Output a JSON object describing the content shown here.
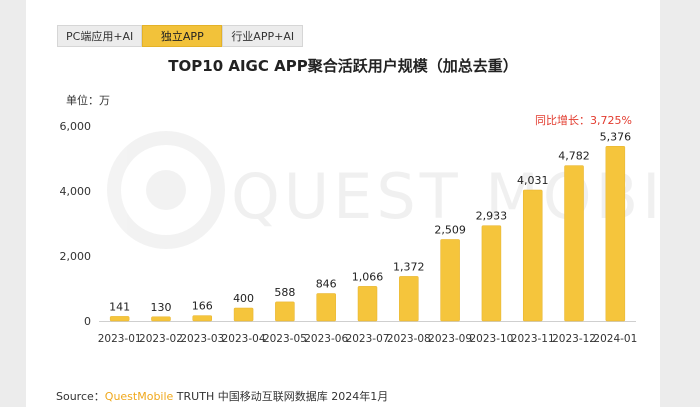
{
  "tabs": [
    {
      "label": "PC端应用+AI",
      "active": false
    },
    {
      "label": "独立APP",
      "active": true
    },
    {
      "label": "行业APP+AI",
      "active": false
    }
  ],
  "unit_label": "单位：万",
  "growth_note": "同比增长：3,725%",
  "watermark": "QUEST MOBILE",
  "source": {
    "prefix": "Source：",
    "brand": "QuestMobile",
    "rest": " TRUTH 中国移动互联网数据库 2024年1月"
  },
  "colors": {
    "bar": "#f5c53c",
    "bar_edge": "#e6b22a",
    "accent": "#e23b2e",
    "tab_active": "#f2c23a"
  },
  "chart_data": {
    "type": "bar",
    "title": "TOP10 AIGC APP聚合活跃用户规模（加总去重）",
    "xlabel": "",
    "ylabel": "单位：万",
    "ylim": [
      0,
      6000
    ],
    "yticks": [
      0,
      2000,
      4000,
      6000
    ],
    "ytick_labels": [
      "0",
      "2,000",
      "4,000",
      "6,000"
    ],
    "categories": [
      "2023-01",
      "2023-02",
      "2023-03",
      "2023-04",
      "2023-05",
      "2023-06",
      "2023-07",
      "2023-08",
      "2023-09",
      "2023-10",
      "2023-11",
      "2023-12",
      "2024-01"
    ],
    "values": [
      141,
      130,
      166,
      400,
      588,
      846,
      1066,
      1372,
      2509,
      2933,
      4031,
      4782,
      5376
    ],
    "value_labels": [
      "141",
      "130",
      "166",
      "400",
      "588",
      "846",
      "1,066",
      "1,372",
      "2,509",
      "2,933",
      "4,031",
      "4,782",
      "5,376"
    ]
  }
}
